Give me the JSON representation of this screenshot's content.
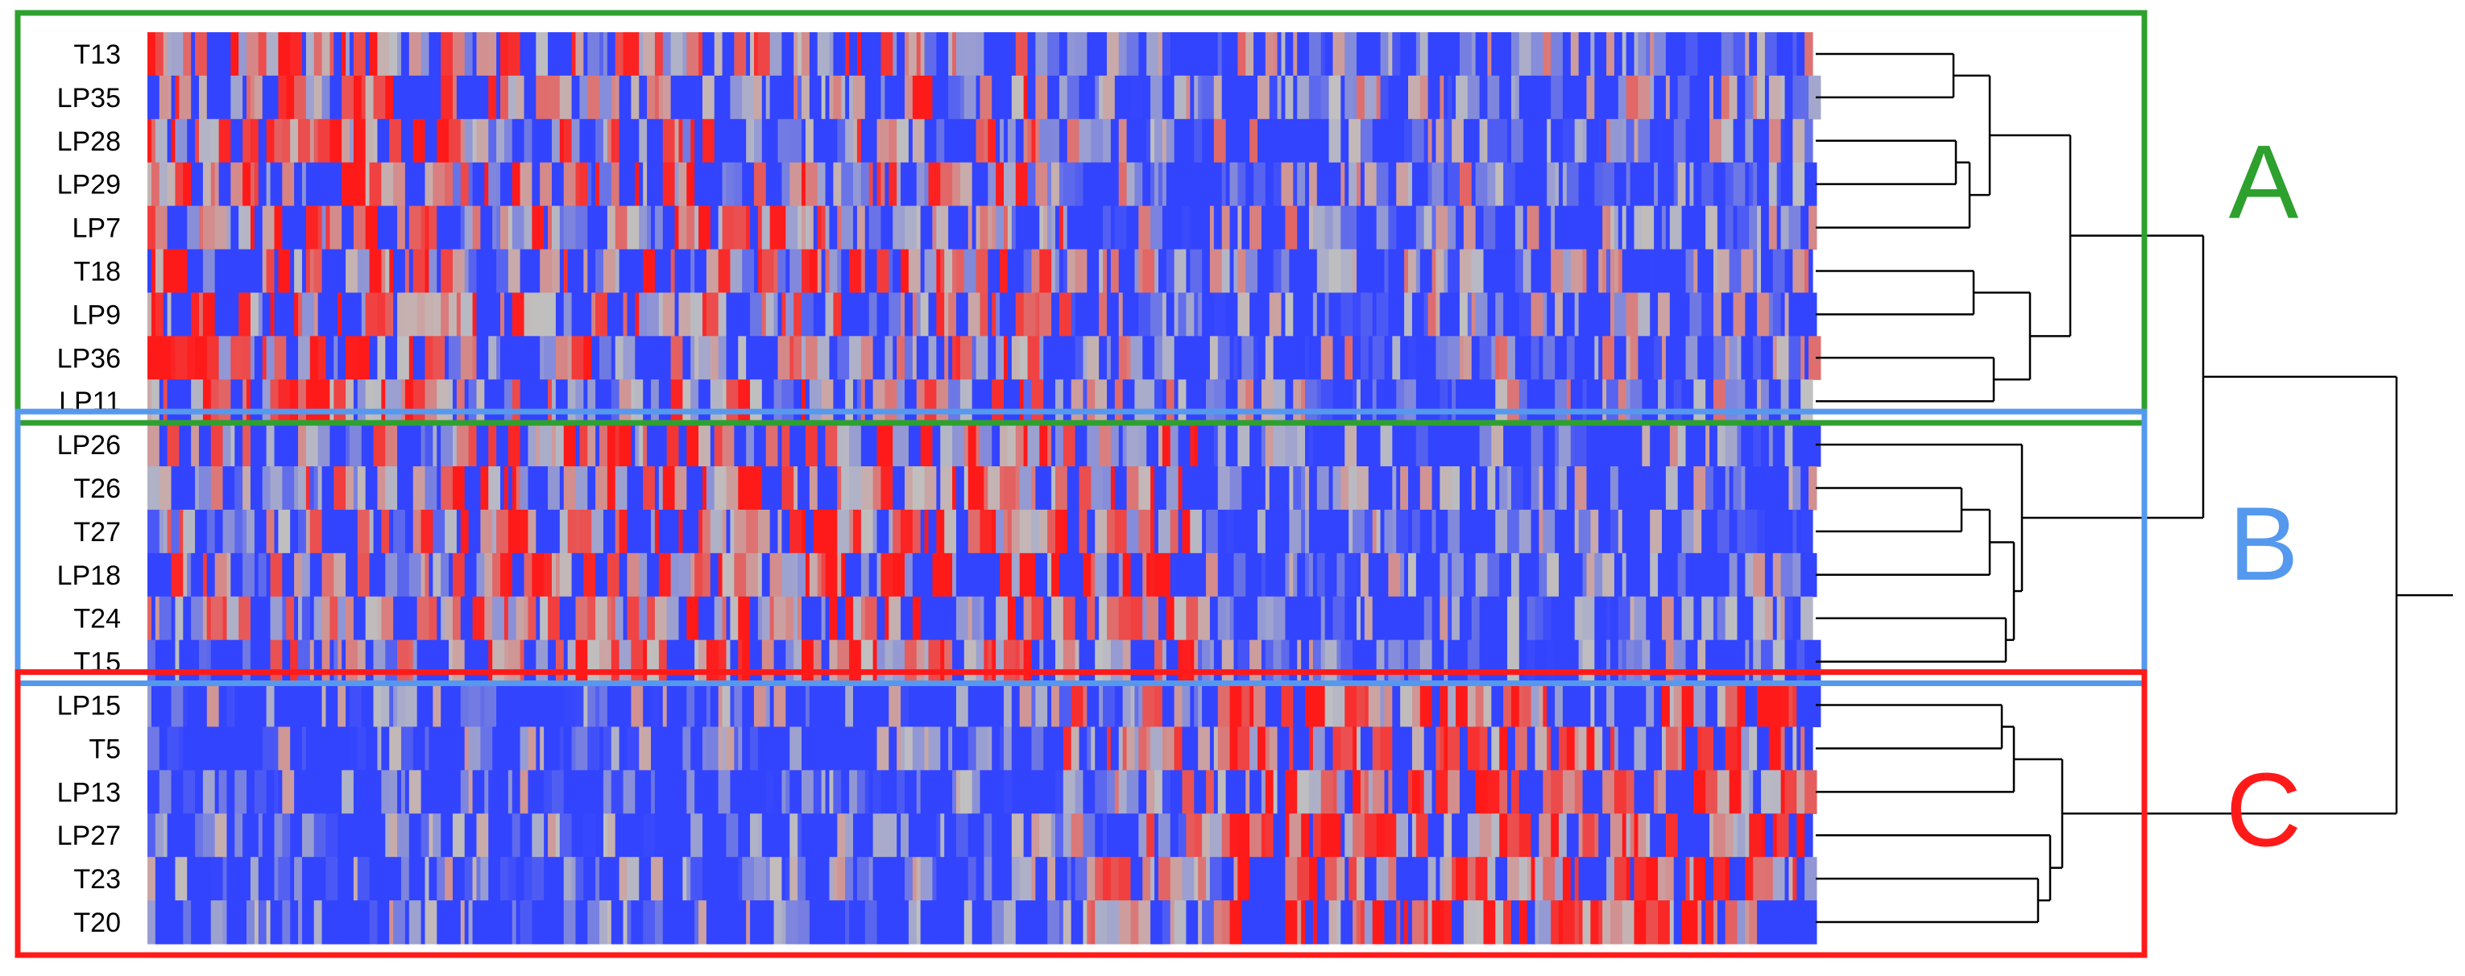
{
  "chart_data": {
    "type": "heatmap",
    "row_labels": [
      "T13",
      "LP35",
      "LP28",
      "LP29",
      "LP7",
      "T18",
      "LP9",
      "LP36",
      "LP11",
      "LP26",
      "T26",
      "T27",
      "LP18",
      "T24",
      "T15",
      "LP15",
      "T5",
      "LP13",
      "LP27",
      "T23",
      "T20"
    ],
    "clusters": [
      {
        "label": "A",
        "rows": [
          "T13",
          "LP35",
          "LP28",
          "LP29",
          "LP7",
          "T18",
          "LP9",
          "LP36",
          "LP11"
        ],
        "color": "#2ea02e"
      },
      {
        "label": "B",
        "rows": [
          "LP26",
          "T26",
          "T27",
          "LP18",
          "T24",
          "T15"
        ],
        "color": "#5599ee"
      },
      {
        "label": "C",
        "rows": [
          "LP15",
          "T5",
          "LP13",
          "LP27",
          "T23",
          "T20"
        ],
        "color": "#ff1a1a"
      }
    ],
    "color_scale": {
      "low": "#3344ff",
      "mid": "#c0c0c0",
      "high": "#ff1a1a"
    },
    "dendrogram_side": "right",
    "grid": false,
    "legend": "none"
  }
}
